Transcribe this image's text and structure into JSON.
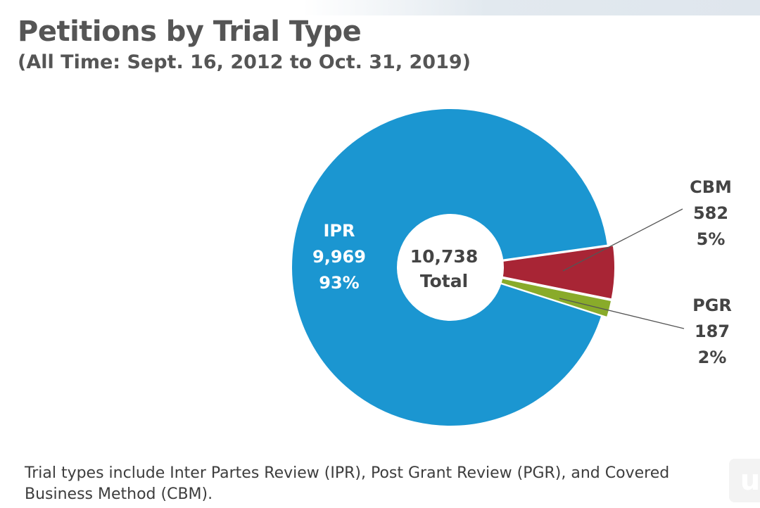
{
  "title": "Petitions by Trial Type",
  "subtitle": "(All Time: Sept. 16, 2012 to Oct. 31, 2019)",
  "footnote": "Trial types include Inter Partes Review (IPR), Post Grant Review (PGR), and Covered Business Method (CBM).",
  "colors": {
    "IPR": "#1b96d1",
    "CBM": "#a82535",
    "PGR": "#89ab2a"
  },
  "chart_data": {
    "type": "pie",
    "donut": true,
    "center_label": {
      "value": "10,738",
      "text": "Total"
    },
    "categories": [
      "IPR",
      "CBM",
      "PGR"
    ],
    "values": [
      9969,
      582,
      187
    ],
    "value_labels": [
      "9,969",
      "582",
      "187"
    ],
    "percent_labels": [
      "93%",
      "5%",
      "2%"
    ],
    "exploded": [
      "CBM",
      "PGR"
    ],
    "legend": "none"
  }
}
